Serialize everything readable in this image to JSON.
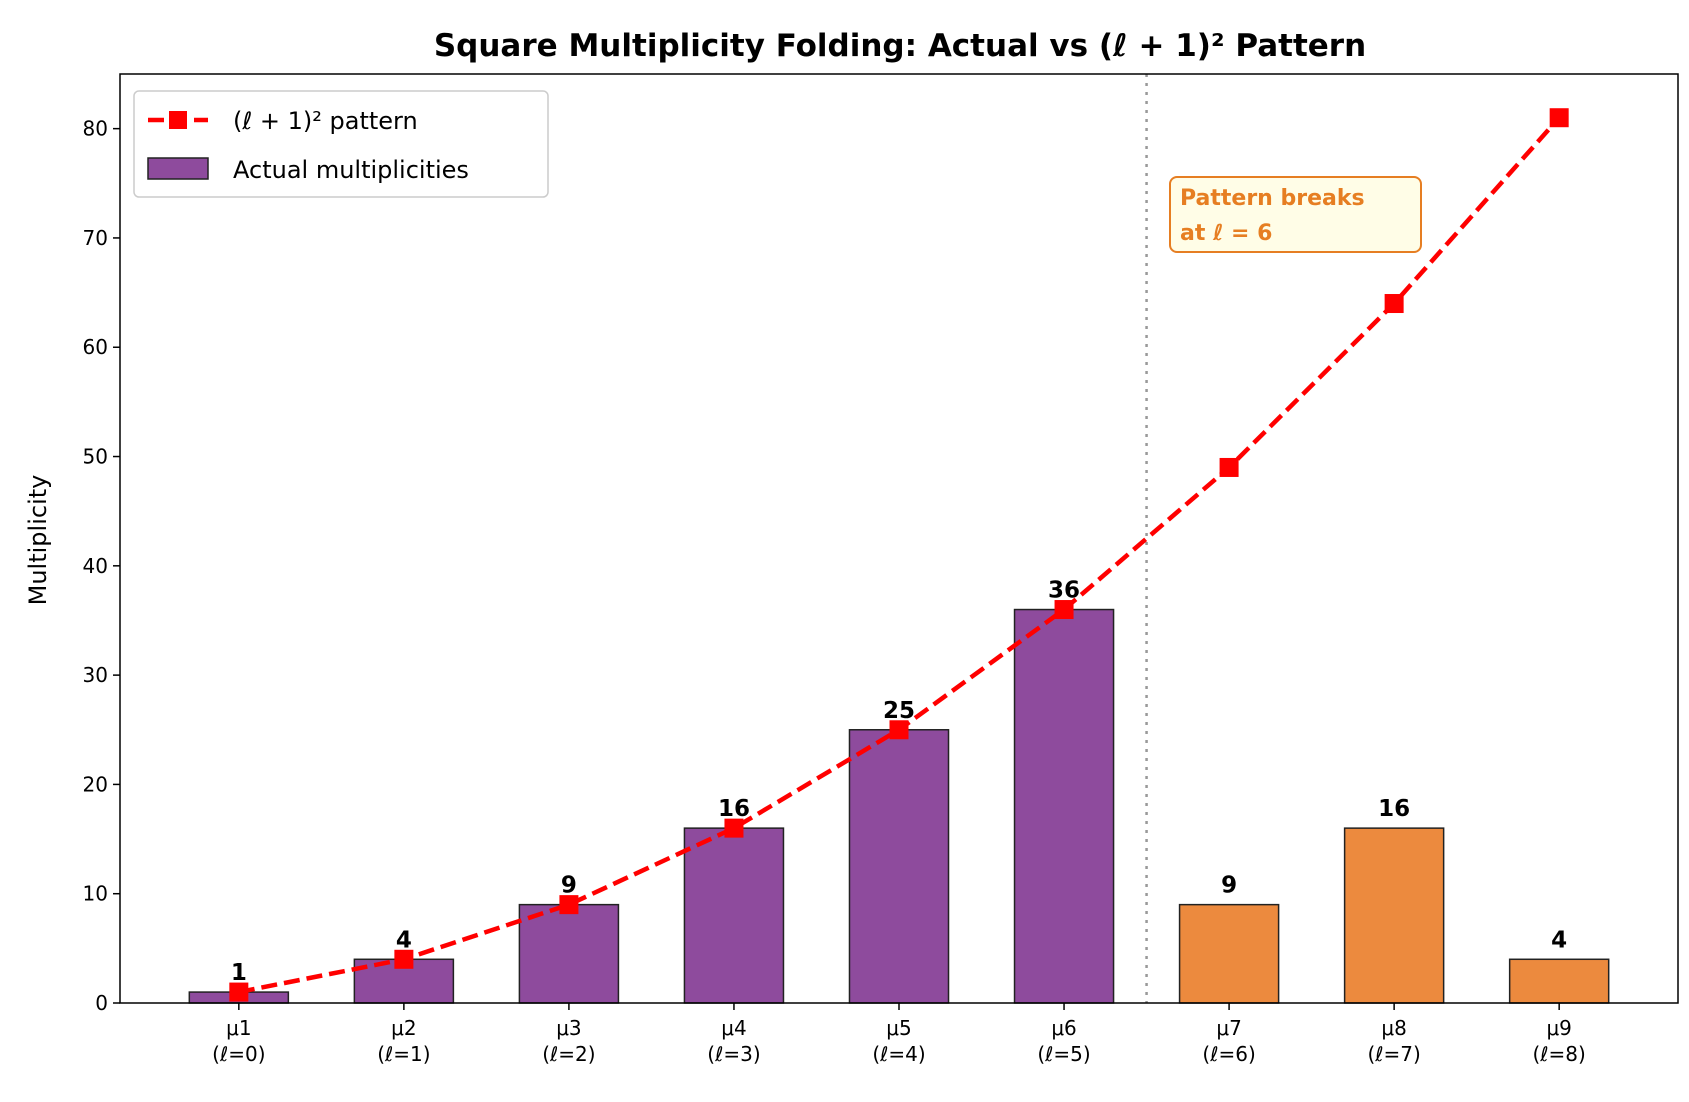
{
  "chart_data": {
    "type": "bar",
    "title": "Square Multiplicity Folding: Actual vs (ℓ + 1)² Pattern",
    "xlabel": "",
    "ylabel": "Multiplicity",
    "ylim": [
      0,
      85
    ],
    "yticks": [
      0,
      10,
      20,
      30,
      40,
      50,
      60,
      70,
      80
    ],
    "grid": false,
    "legend_placement": "top-left",
    "categories": [
      "μ1",
      "μ2",
      "μ3",
      "μ4",
      "μ5",
      "μ6",
      "μ7",
      "μ8",
      "μ9"
    ],
    "category_sublabels": [
      "(ℓ=0)",
      "(ℓ=1)",
      "(ℓ=2)",
      "(ℓ=3)",
      "(ℓ=4)",
      "(ℓ=5)",
      "(ℓ=6)",
      "(ℓ=7)",
      "(ℓ=8)"
    ],
    "series": [
      {
        "name": "Actual multiplicities",
        "kind": "bar",
        "values": [
          1,
          4,
          9,
          16,
          25,
          36,
          9,
          16,
          4
        ],
        "colors": [
          "#8e4b9d",
          "#8e4b9d",
          "#8e4b9d",
          "#8e4b9d",
          "#8e4b9d",
          "#8e4b9d",
          "#ec8a3e",
          "#ec8a3e",
          "#ec8a3e"
        ]
      },
      {
        "name": "(ℓ + 1)² pattern",
        "kind": "line",
        "style": "dashed",
        "marker": "square",
        "color": "#ff0000",
        "values": [
          1,
          4,
          9,
          16,
          25,
          36,
          49,
          64,
          81
        ]
      }
    ],
    "data_labels": [
      "1",
      "4",
      "9",
      "16",
      "25",
      "36",
      "9",
      "16",
      "4"
    ],
    "vertical_line": {
      "x_between": [
        "μ6",
        "μ7"
      ],
      "style": "dotted",
      "color": "#999999"
    },
    "annotation": {
      "lines": [
        "Pattern breaks",
        "at ℓ = 6"
      ],
      "color": "#e67e22",
      "background": "#fffde7"
    }
  }
}
